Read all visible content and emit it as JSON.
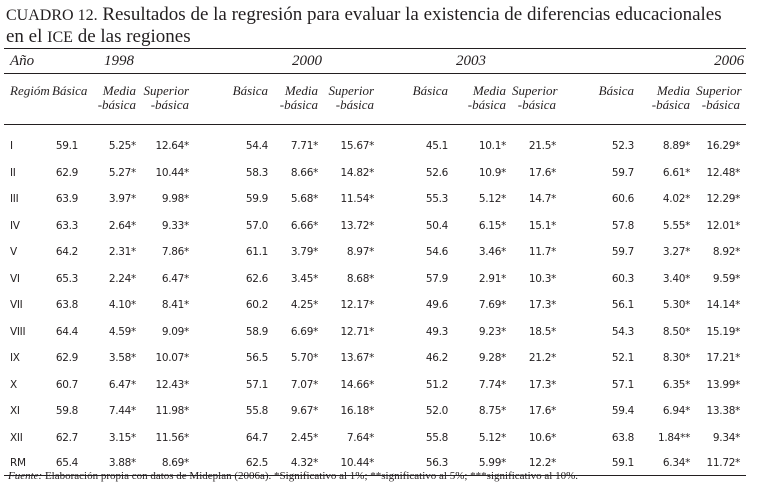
{
  "title": {
    "prefix": "CUADRO 12.",
    "line1": "Resultados de la regresión para evaluar la existencia de diferencias educacionales",
    "line2_a": "en el",
    "line2_sc": "ICE",
    "line2_b": "de las regiones"
  },
  "header": {
    "year_label": "Año",
    "years": [
      "1998",
      "2000",
      "2003",
      "2006"
    ],
    "region_label": "Regióm",
    "col_basica": "Básica",
    "col_media": [
      "Media",
      "-básica"
    ],
    "col_superior": [
      "Superior",
      "-básica"
    ]
  },
  "rows": [
    {
      "region": "I",
      "v": [
        "59.1",
        "5.25*",
        "12.64*",
        "54.4",
        "7.71*",
        "15.67*",
        "45.1",
        "10.1*",
        "21.5*",
        "52.3",
        "8.89*",
        "16.29*"
      ]
    },
    {
      "region": "II",
      "v": [
        "62.9",
        "5.27*",
        "10.44*",
        "58.3",
        "8.66*",
        "14.82*",
        "52.6",
        "10.9*",
        "17.6*",
        "59.7",
        "6.61*",
        "12.48*"
      ]
    },
    {
      "region": "III",
      "v": [
        "63.9",
        "3.97*",
        "9.98*",
        "59.9",
        "5.68*",
        "11.54*",
        "55.3",
        "5.12*",
        "14.7*",
        "60.6",
        "4.02*",
        "12.29*"
      ]
    },
    {
      "region": "IV",
      "v": [
        "63.3",
        "2.64*",
        "9.33*",
        "57.0",
        "6.66*",
        "13.72*",
        "50.4",
        "6.15*",
        "15.1*",
        "57.8",
        "5.55*",
        "12.01*"
      ]
    },
    {
      "region": "V",
      "v": [
        "64.2",
        "2.31*",
        "7.86*",
        "61.1",
        "3.79*",
        "8.97*",
        "54.6",
        "3.46*",
        "11.7*",
        "59.7",
        "3.27*",
        "8.92*"
      ]
    },
    {
      "region": "VI",
      "v": [
        "65.3",
        "2.24*",
        "6.47*",
        "62.6",
        "3.45*",
        "8.68*",
        "57.9",
        "2.91*",
        "10.3*",
        "60.3",
        "3.40*",
        "9.59*"
      ]
    },
    {
      "region": "VII",
      "v": [
        "63.8",
        "4.10*",
        "8.41*",
        "60.2",
        "4.25*",
        "12.17*",
        "49.6",
        "7.69*",
        "17.3*",
        "56.1",
        "5.30*",
        "14.14*"
      ]
    },
    {
      "region": "VIII",
      "v": [
        "64.4",
        "4.59*",
        "9.09*",
        "58.9",
        "6.69*",
        "12.71*",
        "49.3",
        "9.23*",
        "18.5*",
        "54.3",
        "8.50*",
        "15.19*"
      ]
    },
    {
      "region": "IX",
      "v": [
        "62.9",
        "3.58*",
        "10.07*",
        "56.5",
        "5.70*",
        "13.67*",
        "46.2",
        "9.28*",
        "21.2*",
        "52.1",
        "8.30*",
        "17.21*"
      ]
    },
    {
      "region": "X",
      "v": [
        "60.7",
        "6.47*",
        "12.43*",
        "57.1",
        "7.07*",
        "14.66*",
        "51.2",
        "7.74*",
        "17.3*",
        "57.1",
        "6.35*",
        "13.99*"
      ]
    },
    {
      "region": "XI",
      "v": [
        "59.8",
        "7.44*",
        "11.98*",
        "55.8",
        "9.67*",
        "16.18*",
        "52.0",
        "8.75*",
        "17.6*",
        "59.4",
        "6.94*",
        "13.38*"
      ]
    },
    {
      "region": "XII",
      "v": [
        "62.7",
        "3.15*",
        "11.56*",
        "64.7",
        "2.45*",
        "7.64*",
        "55.8",
        "5.12*",
        "10.6*",
        "63.8",
        "1.84**",
        "9.34*"
      ]
    },
    {
      "region": "RM",
      "v": [
        "65.4",
        "3.88*",
        "8.69*",
        "62.5",
        "4.32*",
        "10.44*",
        "56.3",
        "5.99*",
        "12.2*",
        "59.1",
        "6.34*",
        "11.72*"
      ]
    }
  ],
  "footer": {
    "label": "Fuente:",
    "text": "Elaboración propia con datos de Mideplan (2006a). *Significativo al 1%; **significativo al 5%; ***significativo al 10%."
  }
}
